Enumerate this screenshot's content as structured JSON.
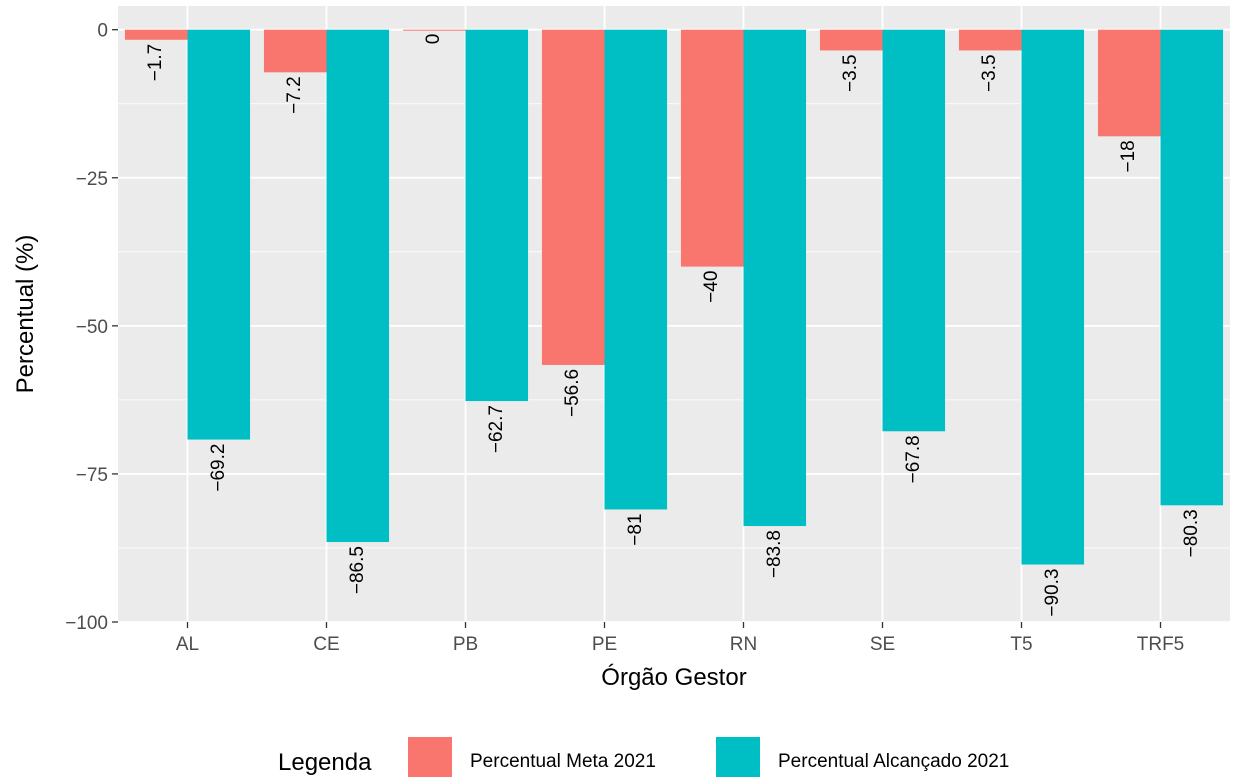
{
  "chart_data": {
    "type": "bar",
    "title": "",
    "xlabel": "Órgão Gestor",
    "ylabel": "Percentual (%)",
    "ylim": [
      -100,
      4
    ],
    "yticks": [
      0,
      -25,
      -50,
      -75,
      -100
    ],
    "ytick_labels": [
      "0",
      "−25",
      "−50",
      "−75",
      "−100"
    ],
    "grid": true,
    "categories": [
      "AL",
      "CE",
      "PB",
      "PE",
      "RN",
      "SE",
      "T5",
      "TRF5"
    ],
    "series": [
      {
        "name": "Percentual Meta 2021",
        "color": "#F8766D",
        "values": [
          -1.7,
          -7.2,
          0,
          -56.6,
          -40,
          -3.5,
          -3.5,
          -18
        ],
        "labels": [
          "−1.7",
          "−7.2",
          "0",
          "−56.6",
          "−40",
          "−3.5",
          "−3.5",
          "−18"
        ]
      },
      {
        "name": "Percentual Alcançado 2021",
        "color": "#00BFC4",
        "values": [
          -69.2,
          -86.5,
          -62.7,
          -81,
          -83.8,
          -67.8,
          -90.3,
          -80.3
        ],
        "labels": [
          "−69.2",
          "−86.5",
          "−62.7",
          "−81",
          "−83.8",
          "−67.8",
          "−90.3",
          "−80.3"
        ]
      }
    ],
    "legend": {
      "title": "Legenda",
      "position": "bottom"
    }
  }
}
